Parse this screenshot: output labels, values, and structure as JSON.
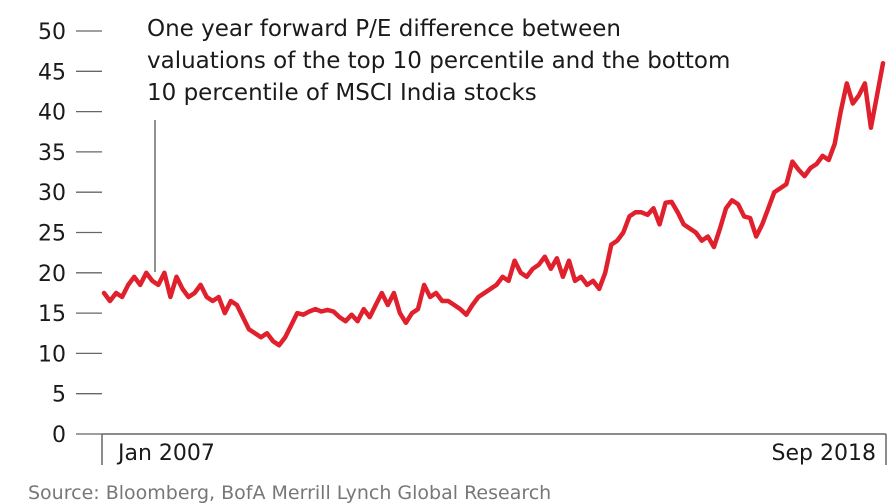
{
  "chart_data": {
    "type": "line",
    "annotation": [
      "One year forward P/E difference between",
      "valuations of the top 10 percentile and the bottom",
      "10 percentile of MSCI India stocks"
    ],
    "x_labels": {
      "start": "Jan 2007",
      "end": "Sep 2018"
    },
    "ylim": [
      0,
      50
    ],
    "yticks": [
      0,
      5,
      10,
      15,
      20,
      25,
      30,
      35,
      40,
      45,
      50
    ],
    "grid": false,
    "line_color": "#e0202c",
    "series": [
      {
        "values": [
          17.5,
          16.5,
          17.5,
          17,
          18.5,
          19.5,
          18.5,
          20,
          19,
          18.5,
          20,
          17,
          19.5,
          18,
          17,
          17.5,
          18.5,
          17,
          16.5,
          17,
          15,
          16.5,
          16,
          14.5,
          13,
          12.5,
          12,
          12.5,
          11.5,
          11,
          12,
          13.5,
          15,
          14.8,
          15.2,
          15.5,
          15.2,
          15.4,
          15.2,
          14.5,
          14,
          14.8,
          14,
          15.5,
          14.5,
          16,
          17.5,
          16,
          17.5,
          15,
          13.8,
          15,
          15.5,
          18.5,
          17,
          17.5,
          16.5,
          16.5,
          16,
          15.5,
          14.8,
          16,
          17,
          17.5,
          18,
          18.5,
          19.5,
          19,
          21.5,
          20,
          19.5,
          20.5,
          21,
          22,
          20.5,
          21.8,
          19.5,
          21.5,
          19,
          19.5,
          18.5,
          19,
          18,
          20,
          23.5,
          24,
          25,
          27,
          27.5,
          27.5,
          27.2,
          28,
          26,
          28.7,
          28.8,
          27.5,
          26,
          25.5,
          25,
          24,
          24.5,
          23.2,
          25.5,
          28,
          29,
          28.5,
          27,
          26.8,
          24.5,
          26,
          28,
          30,
          30.5,
          31,
          33.8,
          32.8,
          32,
          33,
          33.5,
          34.5,
          34,
          36,
          40,
          43.5,
          41,
          42,
          43.5,
          38,
          42,
          46
        ]
      }
    ],
    "source": "Source: Bloomberg, BofA Merrill Lynch Global Research"
  }
}
